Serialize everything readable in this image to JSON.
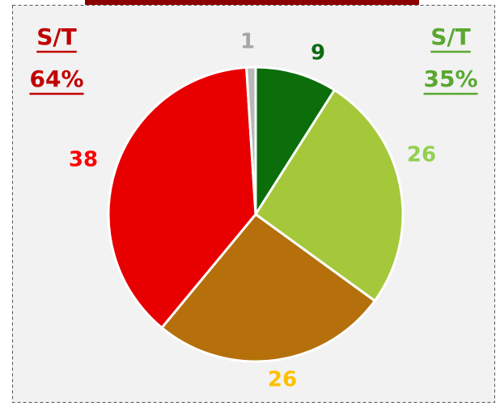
{
  "chart_data": {
    "type": "pie",
    "values": [
      9,
      26,
      26,
      38,
      1
    ],
    "colors": [
      "#0b6e0b",
      "#a4c83a",
      "#b5700c",
      "#e80000",
      "#b8b8b8"
    ],
    "label_colors": [
      "#0f6a12",
      "#92d050",
      "#ffc000",
      "#ff0000",
      "#a6a6a6"
    ],
    "annotations": [
      {
        "lines": [
          "S/T",
          "64%"
        ],
        "color": "#c00000"
      },
      {
        "lines": [
          "S/T",
          "35%"
        ],
        "color": "#5aa832"
      }
    ]
  }
}
